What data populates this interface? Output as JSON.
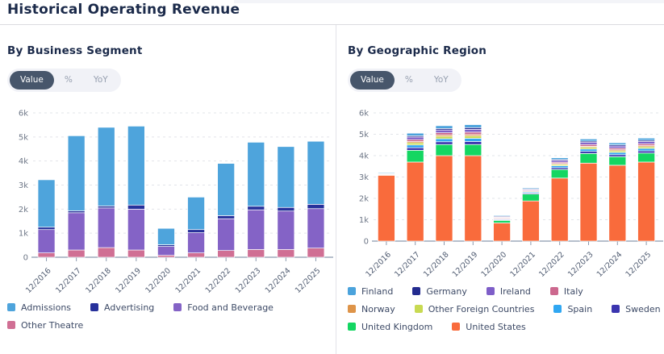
{
  "page": {
    "title": "Historical Operating Revenue"
  },
  "panels": [
    {
      "title": "By Business Segment",
      "toggle": {
        "options": [
          "Value",
          "%",
          "YoY"
        ],
        "selected": "Value"
      },
      "chart_data": {
        "type": "bar",
        "stacked": true,
        "title": "By Business Segment",
        "xlabel": "",
        "ylabel": "",
        "ylim": [
          0,
          6000
        ],
        "yticks": [
          "0",
          "1k",
          "2k",
          "3k",
          "4k",
          "5k",
          "6k"
        ],
        "grid": "dashed-horizontal",
        "legend_position": "bottom",
        "legend_columns": 3,
        "categories": [
          "12/2016",
          "12/2017",
          "12/2018",
          "12/2019",
          "12/2020",
          "12/2021",
          "12/2022",
          "12/2023",
          "12/2024",
          "12/2025"
        ],
        "series": [
          {
            "name": "Other Theatre",
            "color": "#D06F94",
            "values": [
              180,
              300,
              400,
              300,
              80,
              180,
              280,
              320,
              320,
              380
            ]
          },
          {
            "name": "Food and Beverage",
            "color": "#8463C6",
            "values": [
              970,
              1550,
              1650,
              1700,
              370,
              840,
              1320,
              1650,
              1600,
              1640
            ]
          },
          {
            "name": "Advertising",
            "color": "#27319B",
            "values": [
              100,
              80,
              80,
              170,
              70,
              130,
              130,
              150,
              150,
              180
            ]
          },
          {
            "name": "Admissions",
            "color": "#4EA4DC",
            "values": [
              1970,
              3120,
              3270,
              3280,
              680,
              1350,
              2170,
              2660,
              2530,
              2620
            ]
          }
        ]
      }
    },
    {
      "title": "By Geographic Region",
      "toggle": {
        "options": [
          "Value",
          "%",
          "YoY"
        ],
        "selected": "Value"
      },
      "chart_data": {
        "type": "bar",
        "stacked": true,
        "title": "By Geographic Region",
        "xlabel": "",
        "ylabel": "",
        "ylim": [
          0,
          6000
        ],
        "yticks": [
          "0",
          "1k",
          "2k",
          "3k",
          "4k",
          "5k",
          "6k"
        ],
        "grid": "dashed-horizontal",
        "legend_position": "bottom",
        "legend_columns": 4,
        "categories": [
          "12/2016",
          "12/2017",
          "12/2018",
          "12/2019",
          "12/2020",
          "12/2021",
          "12/2022",
          "12/2023",
          "12/2024",
          "12/2025"
        ],
        "series": [
          {
            "name": "United States",
            "color": "#F96B3C",
            "values": [
              3080,
              3700,
              4000,
              4000,
              850,
              1880,
              2950,
              3650,
              3550,
              3700
            ]
          },
          {
            "name": "United Kingdom",
            "color": "#14D662",
            "values": [
              40,
              550,
              520,
              520,
              120,
              320,
              400,
              450,
              400,
              420
            ]
          },
          {
            "name": "Sweden",
            "color": "#3B35AF",
            "values": [
              15,
              120,
              130,
              140,
              35,
              45,
              85,
              100,
              95,
              105
            ]
          },
          {
            "name": "Spain",
            "color": "#30A7F2",
            "values": [
              20,
              130,
              140,
              150,
              40,
              50,
              90,
              110,
              105,
              110
            ]
          },
          {
            "name": "Other Foreign Countries",
            "color": "#C8DA52",
            "values": [
              10,
              100,
              110,
              110,
              25,
              35,
              65,
              80,
              75,
              80
            ]
          },
          {
            "name": "Norway",
            "color": "#DE9449",
            "values": [
              10,
              60,
              70,
              70,
              15,
              20,
              40,
              50,
              50,
              55
            ]
          },
          {
            "name": "Italy",
            "color": "#CC688E",
            "values": [
              15,
              90,
              100,
              110,
              25,
              35,
              60,
              80,
              75,
              85
            ]
          },
          {
            "name": "Ireland",
            "color": "#7E5EC8",
            "values": [
              15,
              120,
              130,
              130,
              35,
              45,
              85,
              100,
              100,
              105
            ]
          },
          {
            "name": "Germany",
            "color": "#232B8F",
            "values": [
              5,
              60,
              70,
              80,
              20,
              25,
              45,
              60,
              55,
              60
            ]
          },
          {
            "name": "Finland",
            "color": "#4BA3DC",
            "values": [
              10,
              120,
              130,
              140,
              35,
              45,
              80,
              100,
              95,
              100
            ]
          }
        ]
      }
    }
  ],
  "colors": {
    "title_text": "#1B2A4A",
    "toggle_selected_bg": "#47566B",
    "toggle_unselected_text": "#97A0B0",
    "axis_line": "#8B99AE",
    "gridline": "#E2E4E9",
    "tick_label": "#6E7787"
  }
}
